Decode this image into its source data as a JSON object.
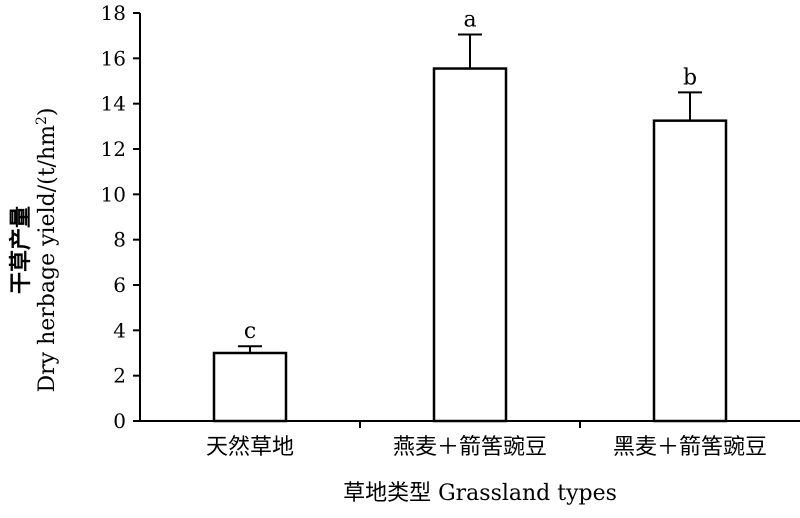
{
  "chart_data": {
    "type": "bar",
    "categories": [
      "天然草地",
      "燕麦＋箭筈豌豆",
      "黑麦＋箭筈豌豆"
    ],
    "series": [
      {
        "values": [
          3.0,
          15.55,
          13.25
        ],
        "errors": [
          0.3,
          1.5,
          1.25
        ],
        "significance": [
          "c",
          "a",
          "b"
        ]
      }
    ],
    "xlabel": "草地类型 Grassland types",
    "ylabel_cn": "干草产量",
    "ylabel_en": "Dry herbage yield/(t/hm",
    "ylabel_sup": "2",
    "ylabel_close": ")",
    "ylim": [
      0,
      18
    ],
    "yticks": [
      0,
      2,
      4,
      6,
      8,
      10,
      12,
      14,
      16,
      18
    ],
    "grid": false,
    "bar_fill": "#ffffff",
    "bar_stroke": "#000000"
  }
}
